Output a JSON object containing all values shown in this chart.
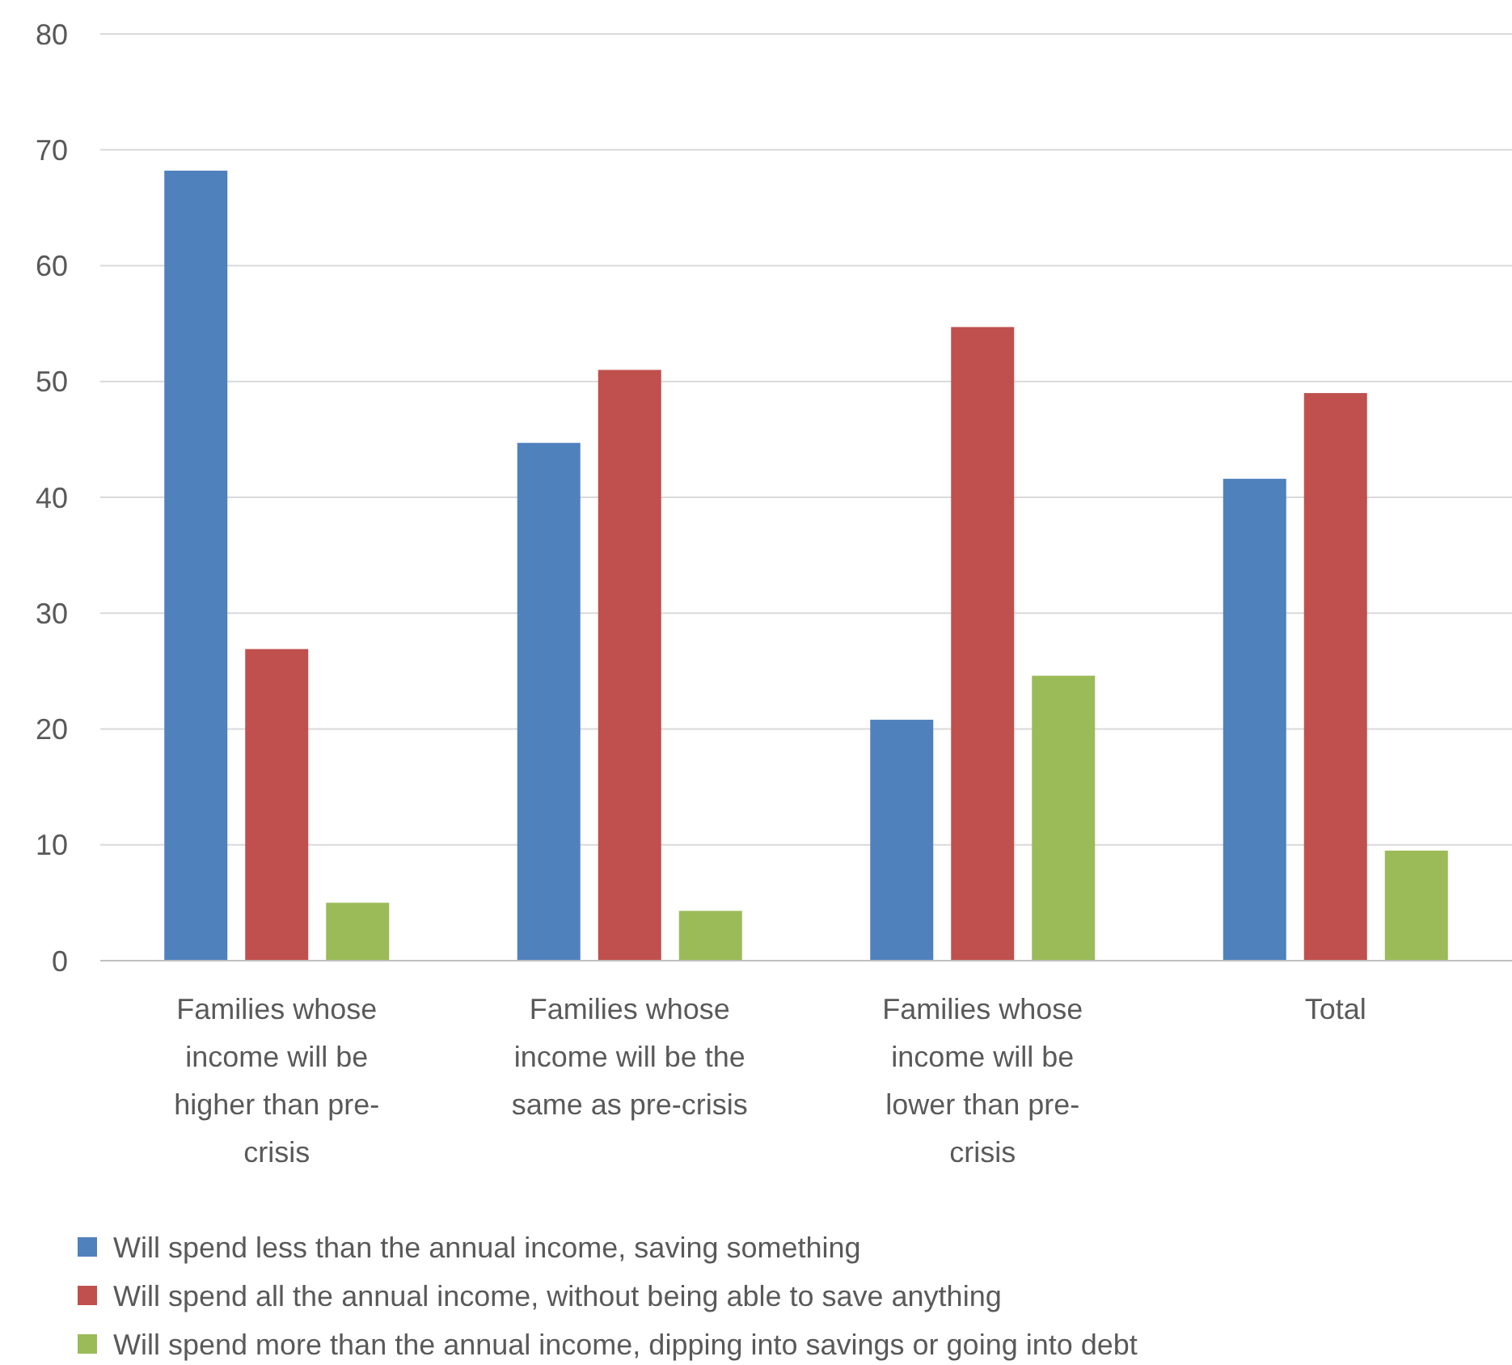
{
  "chart_data": {
    "type": "bar",
    "categories": [
      "Families whose income will be higher than pre-crisis",
      "Families whose income will be the same as pre-crisis",
      "Families whose income will be lower than pre-crisis",
      "Total"
    ],
    "series": [
      {
        "name": "Will spend less than the annual income, saving something",
        "color": "#4f81bd",
        "values": [
          68.2,
          44.7,
          20.8,
          41.6
        ]
      },
      {
        "name": "Will spend all the annual income, without being able to save anything",
        "color": "#c0504d",
        "values": [
          26.9,
          51.0,
          54.7,
          49.0
        ]
      },
      {
        "name": "Will spend more than the annual income, dipping into savings or going into debt",
        "color": "#9bbb59",
        "values": [
          5.0,
          4.3,
          24.6,
          9.5
        ]
      }
    ],
    "ylim": [
      0,
      80
    ],
    "yticks": [
      0,
      10,
      20,
      30,
      40,
      50,
      60,
      70,
      80
    ],
    "grid": "y",
    "legend": "bottom"
  }
}
